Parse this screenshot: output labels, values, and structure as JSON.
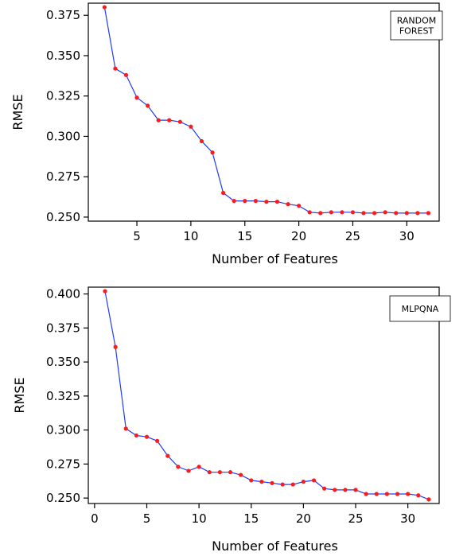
{
  "chart_data": [
    {
      "type": "line",
      "xlabel": "Number of Features",
      "ylabel": "RMSE",
      "xlim": [
        0.5,
        33
      ],
      "ylim": [
        0.2475,
        0.3825
      ],
      "xticks": [
        5,
        10,
        15,
        20,
        25,
        30
      ],
      "yticks": [
        0.25,
        0.275,
        0.3,
        0.325,
        0.35,
        0.375
      ],
      "ytick_labels": [
        "0.250",
        "0.275",
        "0.300",
        "0.325",
        "0.350",
        "0.375"
      ],
      "grid": false,
      "legend_placement": "top-right",
      "line_color": "#1f3cf5",
      "marker_color": "#ff1a1a",
      "series": [
        {
          "name": "RANDOM FOREST",
          "x": [
            2,
            3,
            4,
            5,
            6,
            7,
            8,
            9,
            10,
            11,
            12,
            13,
            14,
            15,
            16,
            17,
            18,
            19,
            20,
            21,
            22,
            23,
            24,
            25,
            26,
            27,
            28,
            29,
            30,
            31,
            32
          ],
          "y": [
            0.38,
            0.342,
            0.338,
            0.324,
            0.319,
            0.31,
            0.31,
            0.309,
            0.306,
            0.297,
            0.29,
            0.265,
            0.26,
            0.26,
            0.26,
            0.2595,
            0.2595,
            0.258,
            0.257,
            0.253,
            0.2525,
            0.253,
            0.253,
            0.253,
            0.2525,
            0.2525,
            0.253,
            0.2525,
            0.2525,
            0.2525,
            0.2525
          ]
        }
      ]
    },
    {
      "type": "line",
      "xlabel": "Number of Features",
      "ylabel": "RMSE",
      "xlim": [
        -0.6,
        33
      ],
      "ylim": [
        0.246,
        0.405
      ],
      "xticks": [
        0,
        5,
        10,
        15,
        20,
        25,
        30
      ],
      "yticks": [
        0.25,
        0.275,
        0.3,
        0.325,
        0.35,
        0.375,
        0.4
      ],
      "ytick_labels": [
        "0.250",
        "0.275",
        "0.300",
        "0.325",
        "0.350",
        "0.375",
        "0.400"
      ],
      "grid": false,
      "legend_placement": "top-right",
      "line_color": "#1f3cf5",
      "marker_color": "#ff1a1a",
      "series": [
        {
          "name": "MLPQNA",
          "x": [
            1,
            2,
            3,
            4,
            5,
            6,
            7,
            8,
            9,
            10,
            11,
            12,
            13,
            14,
            15,
            16,
            17,
            18,
            19,
            20,
            21,
            22,
            23,
            24,
            25,
            26,
            27,
            28,
            29,
            30,
            31,
            32
          ],
          "y": [
            0.402,
            0.361,
            0.301,
            0.296,
            0.295,
            0.292,
            0.281,
            0.273,
            0.27,
            0.273,
            0.269,
            0.269,
            0.269,
            0.267,
            0.263,
            0.262,
            0.261,
            0.26,
            0.26,
            0.262,
            0.263,
            0.257,
            0.256,
            0.256,
            0.256,
            0.253,
            0.253,
            0.253,
            0.253,
            0.253,
            0.252,
            0.249
          ]
        }
      ]
    }
  ]
}
